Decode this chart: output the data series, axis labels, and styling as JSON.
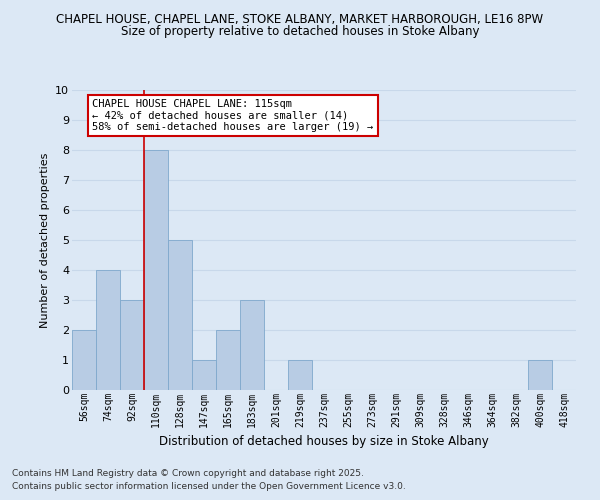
{
  "title_line1": "CHAPEL HOUSE, CHAPEL LANE, STOKE ALBANY, MARKET HARBOROUGH, LE16 8PW",
  "title_line2": "Size of property relative to detached houses in Stoke Albany",
  "xlabel": "Distribution of detached houses by size in Stoke Albany",
  "ylabel": "Number of detached properties",
  "bin_labels": [
    "56sqm",
    "74sqm",
    "92sqm",
    "110sqm",
    "128sqm",
    "147sqm",
    "165sqm",
    "183sqm",
    "201sqm",
    "219sqm",
    "237sqm",
    "255sqm",
    "273sqm",
    "291sqm",
    "309sqm",
    "328sqm",
    "346sqm",
    "364sqm",
    "382sqm",
    "400sqm",
    "418sqm"
  ],
  "bar_heights": [
    2,
    4,
    3,
    8,
    5,
    1,
    2,
    3,
    0,
    1,
    0,
    0,
    0,
    0,
    0,
    0,
    0,
    0,
    0,
    1,
    0
  ],
  "bar_color": "#b8cce4",
  "bar_edge_color": "#7fa8cc",
  "grid_color": "#c8d8ea",
  "vline_x": 2.5,
  "vline_color": "#cc0000",
  "annotation_text": "CHAPEL HOUSE CHAPEL LANE: 115sqm\n← 42% of detached houses are smaller (14)\n58% of semi-detached houses are larger (19) →",
  "annotation_box_color": "white",
  "annotation_box_edge": "#cc0000",
  "ylim": [
    0,
    10
  ],
  "yticks": [
    0,
    1,
    2,
    3,
    4,
    5,
    6,
    7,
    8,
    9,
    10
  ],
  "footnote1": "Contains HM Land Registry data © Crown copyright and database right 2025.",
  "footnote2": "Contains public sector information licensed under the Open Government Licence v3.0.",
  "background_color": "#dce8f5"
}
